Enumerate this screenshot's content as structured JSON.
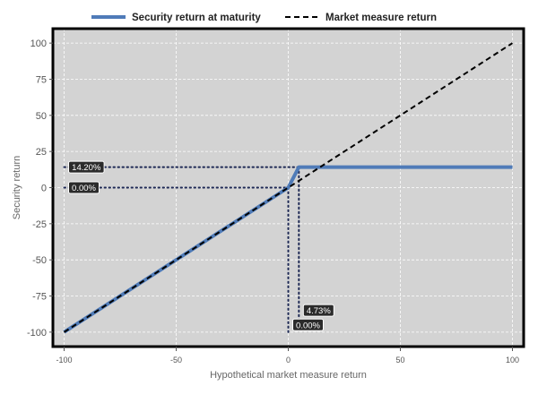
{
  "chart_data": {
    "type": "line",
    "xlabel": "Hypothetical market measure return",
    "ylabel": "Security return",
    "xlim": [
      -105,
      105
    ],
    "ylim": [
      -110,
      110
    ],
    "x_ticks": [
      -100,
      -50,
      0,
      50,
      100
    ],
    "y_ticks": [
      100,
      75,
      50,
      25,
      0,
      -25,
      -50,
      -75,
      -100
    ],
    "grid": true,
    "legend_position": "top",
    "series": [
      {
        "name": "Security return at maturity",
        "style": "solid",
        "color": "#4f7bb8",
        "x": [
          -100,
          0,
          4.73,
          100
        ],
        "y": [
          -100,
          0,
          14.2,
          14.2
        ]
      },
      {
        "name": "Market measure return",
        "style": "dashed",
        "color": "#000000",
        "x": [
          -100,
          100
        ],
        "y": [
          -100,
          100
        ]
      }
    ],
    "y_callouts": [
      {
        "label": "14.20%",
        "value": 14.2,
        "to_x": 4.73
      },
      {
        "label": "0.00%",
        "value": 0,
        "to_x": 0
      }
    ],
    "x_callouts": [
      {
        "label": "4.73%",
        "value": 4.73,
        "to_y": 14.2
      },
      {
        "label": "0.00%",
        "value": 0,
        "to_y": 0
      }
    ]
  }
}
